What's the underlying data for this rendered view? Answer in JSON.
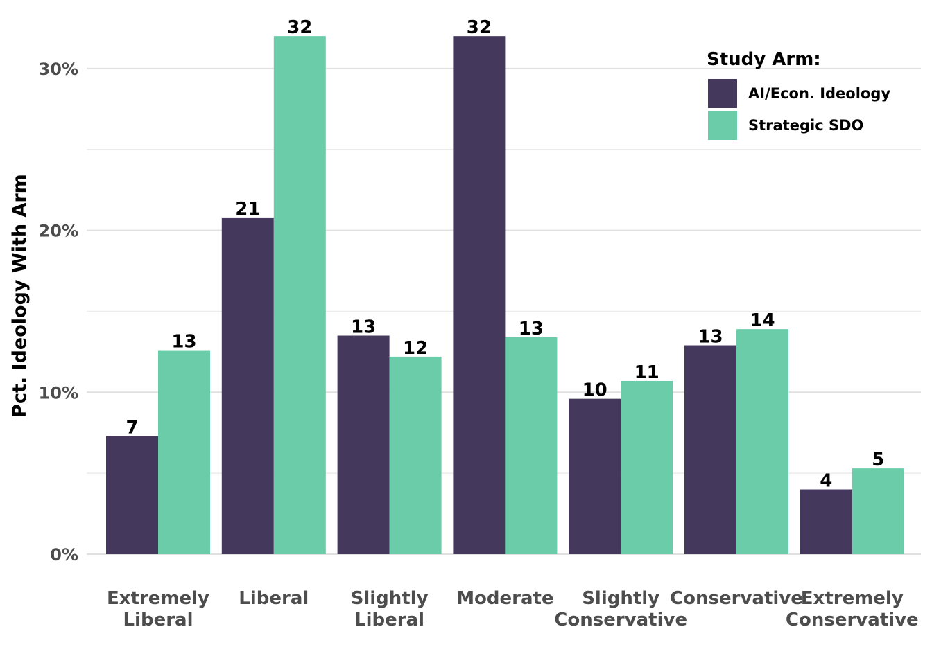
{
  "chart_data": {
    "type": "bar",
    "title": "",
    "xlabel": "",
    "ylabel": "Pct. Ideology With Arm",
    "categories": [
      [
        "Extremely",
        "Liberal"
      ],
      [
        "Liberal"
      ],
      [
        "Slightly",
        "Liberal"
      ],
      [
        "Moderate"
      ],
      [
        "Slightly",
        "Conservative"
      ],
      [
        "Conservative"
      ],
      [
        "Extremely",
        "Conservative"
      ]
    ],
    "series": [
      {
        "name": "AI/Econ. Ideology",
        "color": "#44385c",
        "values": [
          7.3,
          20.8,
          13.5,
          32.0,
          9.6,
          12.9,
          4.0
        ],
        "labels": [
          "7",
          "21",
          "13",
          "32",
          "10",
          "13",
          "4"
        ]
      },
      {
        "name": "Strategic SDO",
        "color": "#6acca9",
        "values": [
          12.6,
          32.0,
          12.2,
          13.4,
          10.7,
          13.9,
          5.3
        ],
        "labels": [
          "13",
          "32",
          "12",
          "13",
          "11",
          "14",
          "5"
        ]
      }
    ],
    "ylim": [
      0,
      33
    ],
    "yticks": [
      {
        "value": 0,
        "label": "0%"
      },
      {
        "value": 10,
        "label": "10%"
      },
      {
        "value": 20,
        "label": "20%"
      },
      {
        "value": 30,
        "label": "30%"
      }
    ],
    "minor_gridlines": [
      5,
      15,
      25
    ],
    "grid": true,
    "legend": {
      "title": "Study Arm:",
      "position": "top-right"
    }
  }
}
